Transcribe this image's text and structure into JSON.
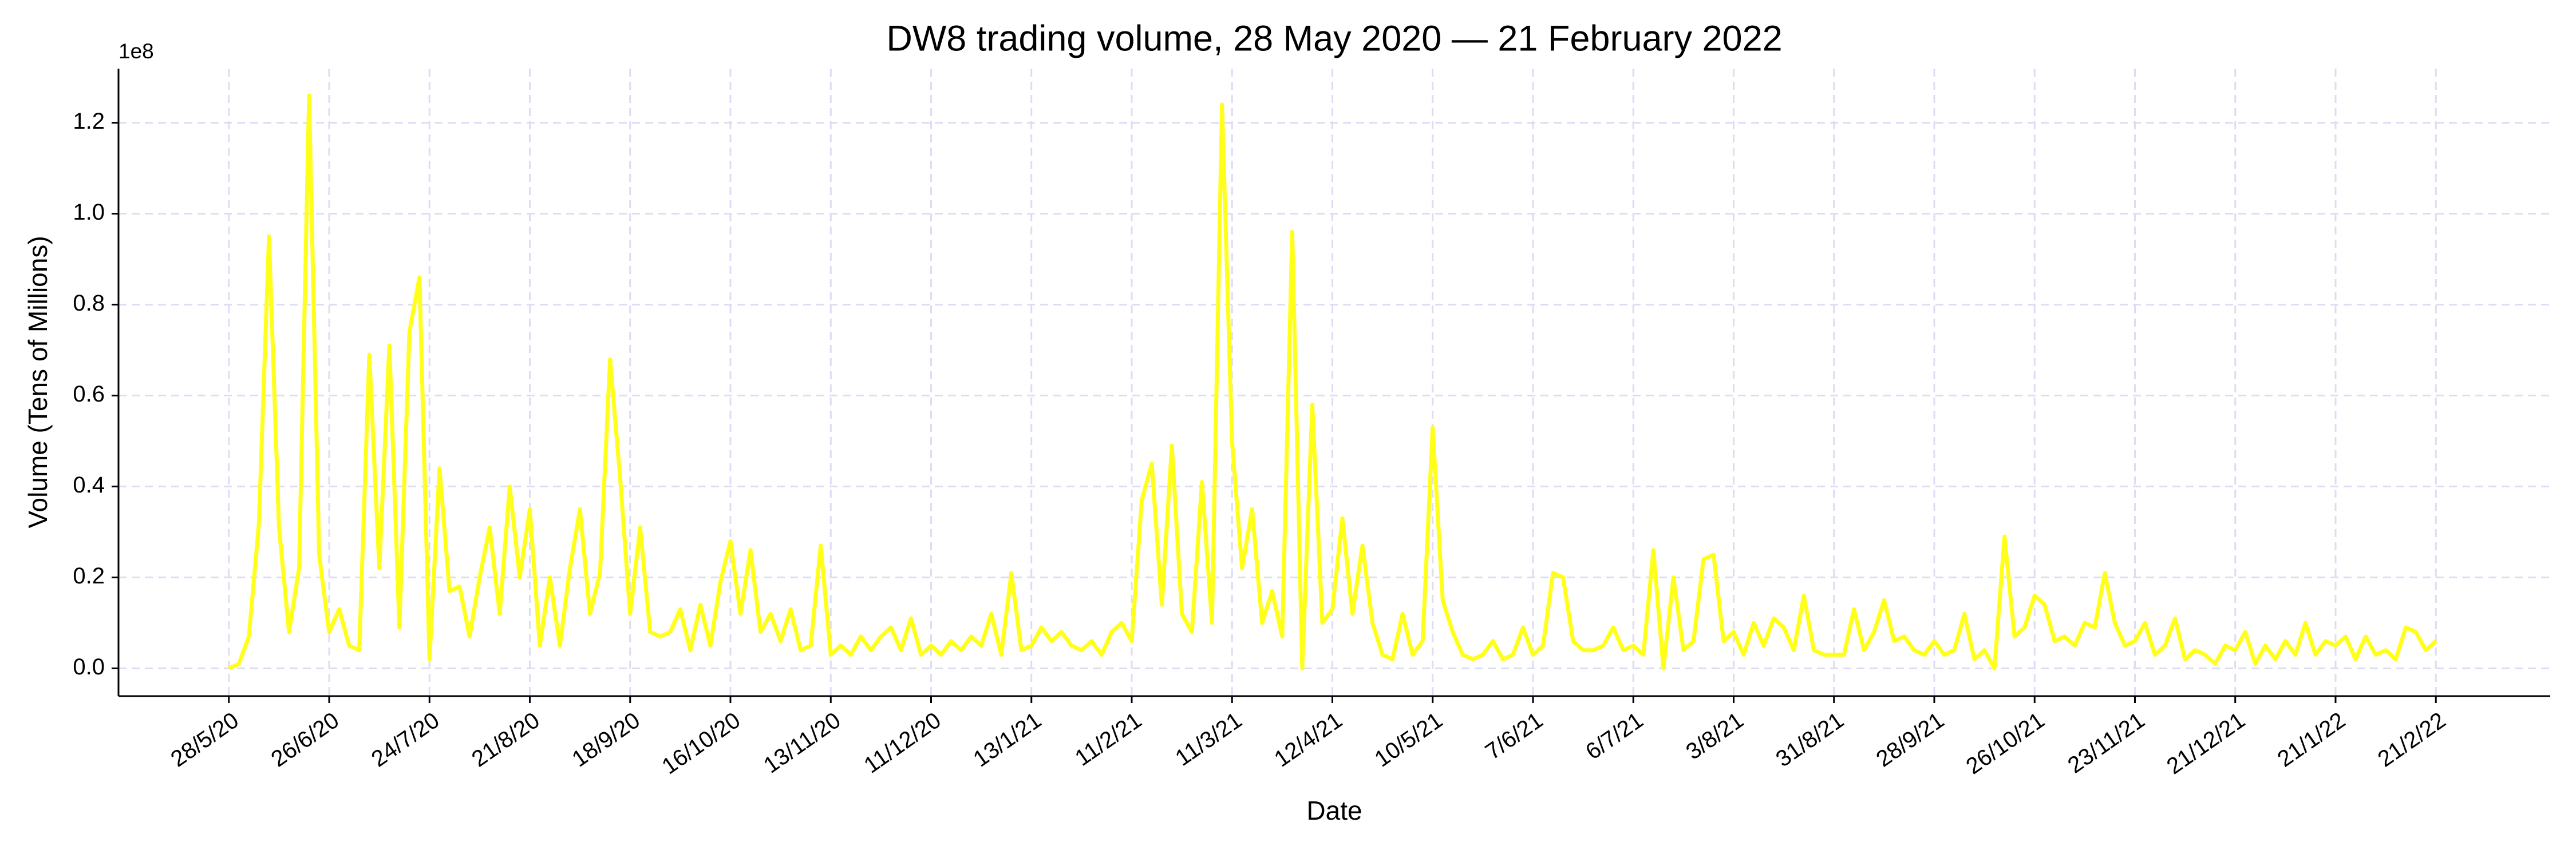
{
  "chart_data": {
    "type": "line",
    "title": "DW8 trading volume, 28 May 2020 — 21 February 2022",
    "x_label": "Date",
    "y_label": "Volume (Tens of Millions)",
    "y_offset_label": "1e8",
    "color": "#ffff1a",
    "grid": true,
    "ylim": [
      -0.061,
      1.319
    ],
    "yticks": [
      {
        "value": 0,
        "label": "0.0"
      },
      0.2,
      0.4,
      0.6,
      0.8,
      {
        "value": 1,
        "label": "1.0"
      },
      1.2
    ],
    "categories": [
      "28/5/20",
      null,
      null,
      null,
      null,
      null,
      null,
      null,
      null,
      null,
      "26/6/20",
      null,
      null,
      null,
      null,
      null,
      null,
      null,
      null,
      null,
      "24/7/20",
      null,
      null,
      null,
      null,
      null,
      null,
      null,
      null,
      null,
      "21/8/20",
      null,
      null,
      null,
      null,
      null,
      null,
      null,
      null,
      null,
      "18/9/20",
      null,
      null,
      null,
      null,
      null,
      null,
      null,
      null,
      null,
      "16/10/20",
      null,
      null,
      null,
      null,
      null,
      null,
      null,
      null,
      null,
      "13/11/20",
      null,
      null,
      null,
      null,
      null,
      null,
      null,
      null,
      null,
      "11/12/20",
      null,
      null,
      null,
      null,
      null,
      null,
      null,
      null,
      null,
      "13/1/21",
      null,
      null,
      null,
      null,
      null,
      null,
      null,
      null,
      null,
      "11/2/21",
      null,
      null,
      null,
      null,
      null,
      null,
      null,
      null,
      null,
      "11/3/21",
      null,
      null,
      null,
      null,
      null,
      null,
      null,
      null,
      null,
      "12/4/21",
      null,
      null,
      null,
      null,
      null,
      null,
      null,
      null,
      null,
      "10/5/21",
      null,
      null,
      null,
      null,
      null,
      null,
      null,
      null,
      null,
      "7/6/21",
      null,
      null,
      null,
      null,
      null,
      null,
      null,
      null,
      null,
      "6/7/21",
      null,
      null,
      null,
      null,
      null,
      null,
      null,
      null,
      null,
      "3/8/21",
      null,
      null,
      null,
      null,
      null,
      null,
      null,
      null,
      null,
      "31/8/21",
      null,
      null,
      null,
      null,
      null,
      null,
      null,
      null,
      null,
      "28/9/21",
      null,
      null,
      null,
      null,
      null,
      null,
      null,
      null,
      null,
      "26/10/21",
      null,
      null,
      null,
      null,
      null,
      null,
      null,
      null,
      null,
      "23/11/21",
      null,
      null,
      null,
      null,
      null,
      null,
      null,
      null,
      null,
      "21/12/21",
      null,
      null,
      null,
      null,
      null,
      null,
      null,
      null,
      null,
      "21/1/22",
      null,
      null,
      null,
      null,
      null,
      null,
      null,
      null,
      null,
      "21/2/22"
    ],
    "values": [
      0.0,
      0.01,
      0.07,
      0.32,
      0.95,
      0.31,
      0.08,
      0.22,
      1.26,
      0.25,
      0.08,
      0.13,
      0.05,
      0.04,
      0.69,
      0.22,
      0.71,
      0.09,
      0.74,
      0.86,
      0.02,
      0.44,
      0.17,
      0.18,
      0.07,
      0.2,
      0.31,
      0.12,
      0.4,
      0.2,
      0.35,
      0.05,
      0.2,
      0.05,
      0.22,
      0.35,
      0.12,
      0.21,
      0.68,
      0.42,
      0.12,
      0.31,
      0.08,
      0.07,
      0.08,
      0.13,
      0.04,
      0.14,
      0.05,
      0.19,
      0.28,
      0.12,
      0.26,
      0.08,
      0.12,
      0.06,
      0.13,
      0.04,
      0.05,
      0.27,
      0.03,
      0.05,
      0.03,
      0.07,
      0.04,
      0.07,
      0.09,
      0.04,
      0.11,
      0.03,
      0.05,
      0.03,
      0.06,
      0.04,
      0.07,
      0.05,
      0.12,
      0.03,
      0.21,
      0.04,
      0.05,
      0.09,
      0.06,
      0.08,
      0.05,
      0.04,
      0.06,
      0.03,
      0.08,
      0.1,
      0.06,
      0.37,
      0.45,
      0.14,
      0.49,
      0.12,
      0.08,
      0.41,
      0.1,
      1.24,
      0.5,
      0.22,
      0.35,
      0.1,
      0.17,
      0.07,
      0.96,
      0.0,
      0.58,
      0.1,
      0.13,
      0.33,
      0.12,
      0.27,
      0.1,
      0.03,
      0.02,
      0.12,
      0.03,
      0.06,
      0.53,
      0.15,
      0.08,
      0.03,
      0.02,
      0.03,
      0.06,
      0.02,
      0.03,
      0.09,
      0.03,
      0.05,
      0.21,
      0.2,
      0.06,
      0.04,
      0.04,
      0.05,
      0.09,
      0.04,
      0.05,
      0.03,
      0.26,
      0.0,
      0.2,
      0.04,
      0.06,
      0.24,
      0.25,
      0.06,
      0.08,
      0.03,
      0.1,
      0.05,
      0.11,
      0.09,
      0.04,
      0.16,
      0.04,
      0.03,
      0.03,
      0.03,
      0.13,
      0.04,
      0.08,
      0.15,
      0.06,
      0.07,
      0.04,
      0.03,
      0.06,
      0.03,
      0.04,
      0.12,
      0.02,
      0.04,
      0.0,
      0.29,
      0.07,
      0.09,
      0.16,
      0.14,
      0.06,
      0.07,
      0.05,
      0.1,
      0.09,
      0.21,
      0.1,
      0.05,
      0.06,
      0.1,
      0.03,
      0.05,
      0.11,
      0.02,
      0.04,
      0.03,
      0.01,
      0.05,
      0.04,
      0.08,
      0.01,
      0.05,
      0.02,
      0.06,
      0.03,
      0.1,
      0.03,
      0.06,
      0.05,
      0.07,
      0.02,
      0.07,
      0.03,
      0.04,
      0.02,
      0.09,
      0.08,
      0.04,
      0.06
    ]
  }
}
